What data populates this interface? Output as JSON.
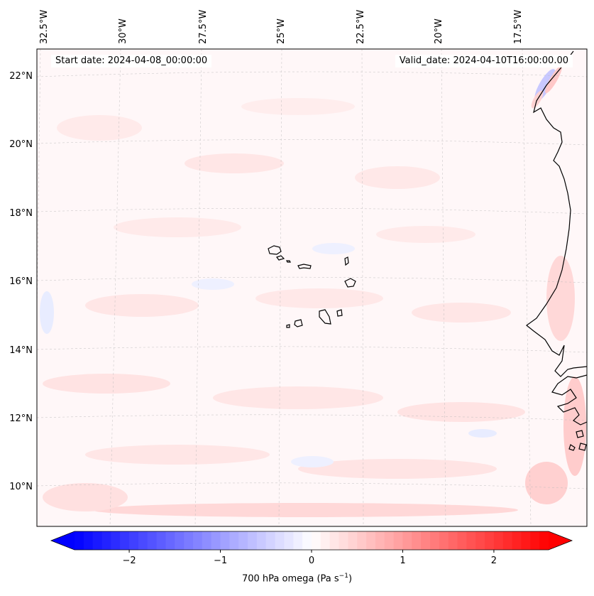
{
  "header": {
    "start_date": "Start date: 2024-04-08_00:00:00",
    "valid_date": "Valid_date: 2024-04-10T16:00:00.00"
  },
  "axes": {
    "lon_labels": [
      "32.5°W",
      "30°W",
      "27.5°W",
      "25°W",
      "22.5°W",
      "20°W",
      "17.5°W"
    ],
    "lat_labels": [
      "22°N",
      "20°N",
      "18°N",
      "16°N",
      "14°N",
      "12°N",
      "10°N"
    ]
  },
  "colorbar": {
    "label": "700 hPa omega (Pa s",
    "label_sup": "−1",
    "label_tail": ")",
    "tick_labels": [
      "−2",
      "−1",
      "0",
      "1",
      "2"
    ],
    "ticks": [
      -2,
      -1,
      0,
      1,
      2
    ],
    "range": [
      -2.6,
      2.6
    ],
    "colors": {
      "min": "#0000ff",
      "mid": "#ffffff",
      "max": "#ff0000"
    }
  },
  "colors": {
    "land_outline": "#000000",
    "gridline": "#b0b0b0",
    "field_positive": "#ffe4e4",
    "field_negative": "#eef0ff"
  }
}
